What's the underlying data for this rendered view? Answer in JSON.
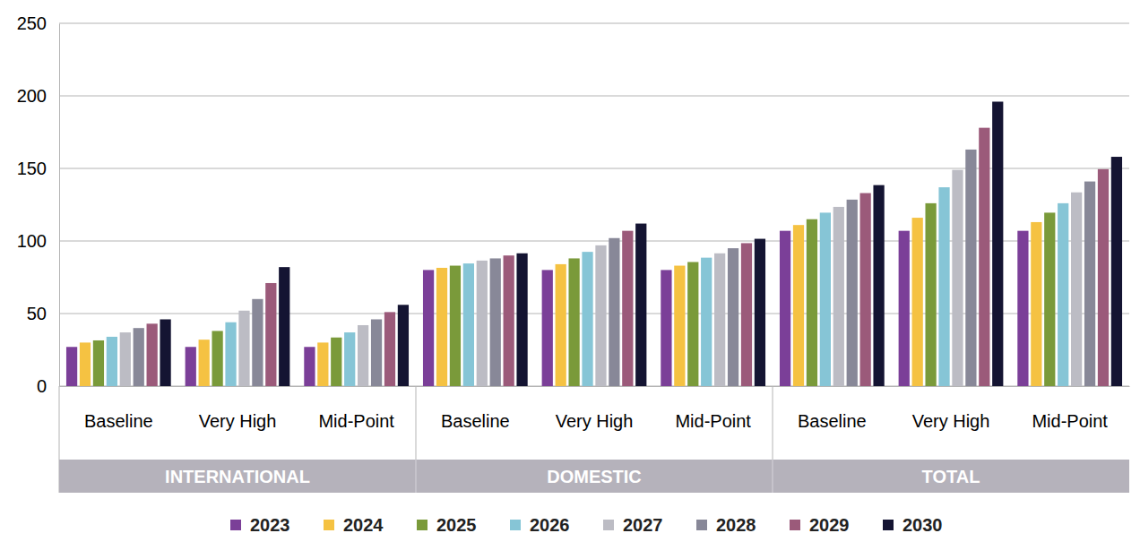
{
  "chart_data": {
    "type": "bar",
    "groups": [
      "INTERNATIONAL",
      "DOMESTIC",
      "TOTAL"
    ],
    "categories": [
      "Baseline",
      "Very High",
      "Mid-Point",
      "Baseline",
      "Very High",
      "Mid-Point",
      "Baseline",
      "Very High",
      "Mid-Point"
    ],
    "series": [
      {
        "name": "2023",
        "color": "#7b3f98",
        "values": [
          27,
          27,
          27,
          80,
          80,
          80,
          107,
          107,
          107
        ]
      },
      {
        "name": "2024",
        "color": "#f5c242",
        "values": [
          30,
          32,
          30,
          81.5,
          84,
          83,
          111,
          116,
          113
        ]
      },
      {
        "name": "2025",
        "color": "#7a9a3a",
        "values": [
          31.5,
          38,
          33.5,
          83,
          88,
          85.5,
          115,
          126,
          119.5
        ]
      },
      {
        "name": "2026",
        "color": "#86c5d6",
        "values": [
          34,
          44,
          37,
          84.5,
          92.5,
          88.5,
          119.5,
          137,
          126
        ]
      },
      {
        "name": "2027",
        "color": "#bcbcc4",
        "values": [
          37,
          52,
          42,
          86.5,
          97,
          91.5,
          123.5,
          149,
          133.5
        ]
      },
      {
        "name": "2028",
        "color": "#888898",
        "values": [
          40,
          60,
          46,
          88,
          102,
          95,
          128.5,
          163,
          141
        ]
      },
      {
        "name": "2029",
        "color": "#9b5a7a",
        "values": [
          43,
          71,
          51,
          90,
          107,
          98.5,
          133,
          178,
          149.5
        ]
      },
      {
        "name": "2030",
        "color": "#141432",
        "values": [
          46,
          82,
          56,
          91.5,
          112,
          101.5,
          138.5,
          196,
          158
        ]
      }
    ],
    "ylim": [
      0,
      250
    ],
    "yticks": [
      0,
      50,
      100,
      150,
      200,
      250
    ],
    "grid": true,
    "legend": "bottom"
  }
}
